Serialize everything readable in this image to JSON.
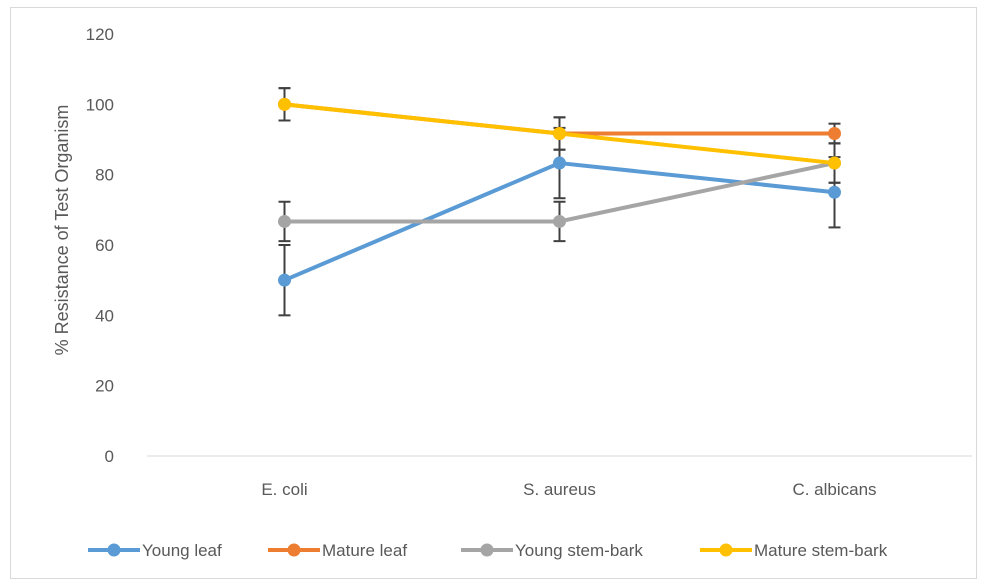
{
  "chart_data": {
    "type": "line",
    "title": "",
    "xlabel": "",
    "ylabel": "% Resistance  of Test Organism",
    "categories": [
      "E. coli",
      "S. aureus",
      "C. albicans"
    ],
    "ylim": [
      0,
      120
    ],
    "yticks": [
      0,
      20,
      40,
      60,
      80,
      100,
      120
    ],
    "grid": false,
    "legend_position": "bottom",
    "series": [
      {
        "name": "Young leaf",
        "color": "#5b9bd5",
        "values": [
          50,
          83.3,
          75
        ],
        "error": [
          10,
          10,
          10
        ]
      },
      {
        "name": "Mature leaf",
        "color": "#ed7d31",
        "values": [
          100,
          91.7,
          91.7
        ],
        "error": [
          4.6,
          4.6,
          2.8
        ]
      },
      {
        "name": "Young stem-bark",
        "color": "#a5a5a5",
        "values": [
          66.7,
          66.7,
          83.3
        ],
        "error": [
          5.6,
          5.6,
          5.6
        ]
      },
      {
        "name": "Mature stem-bark",
        "color": "#ffc000",
        "values": [
          100,
          91.7,
          83.3
        ],
        "error": [
          4.6,
          4.6,
          5.6
        ]
      }
    ]
  }
}
